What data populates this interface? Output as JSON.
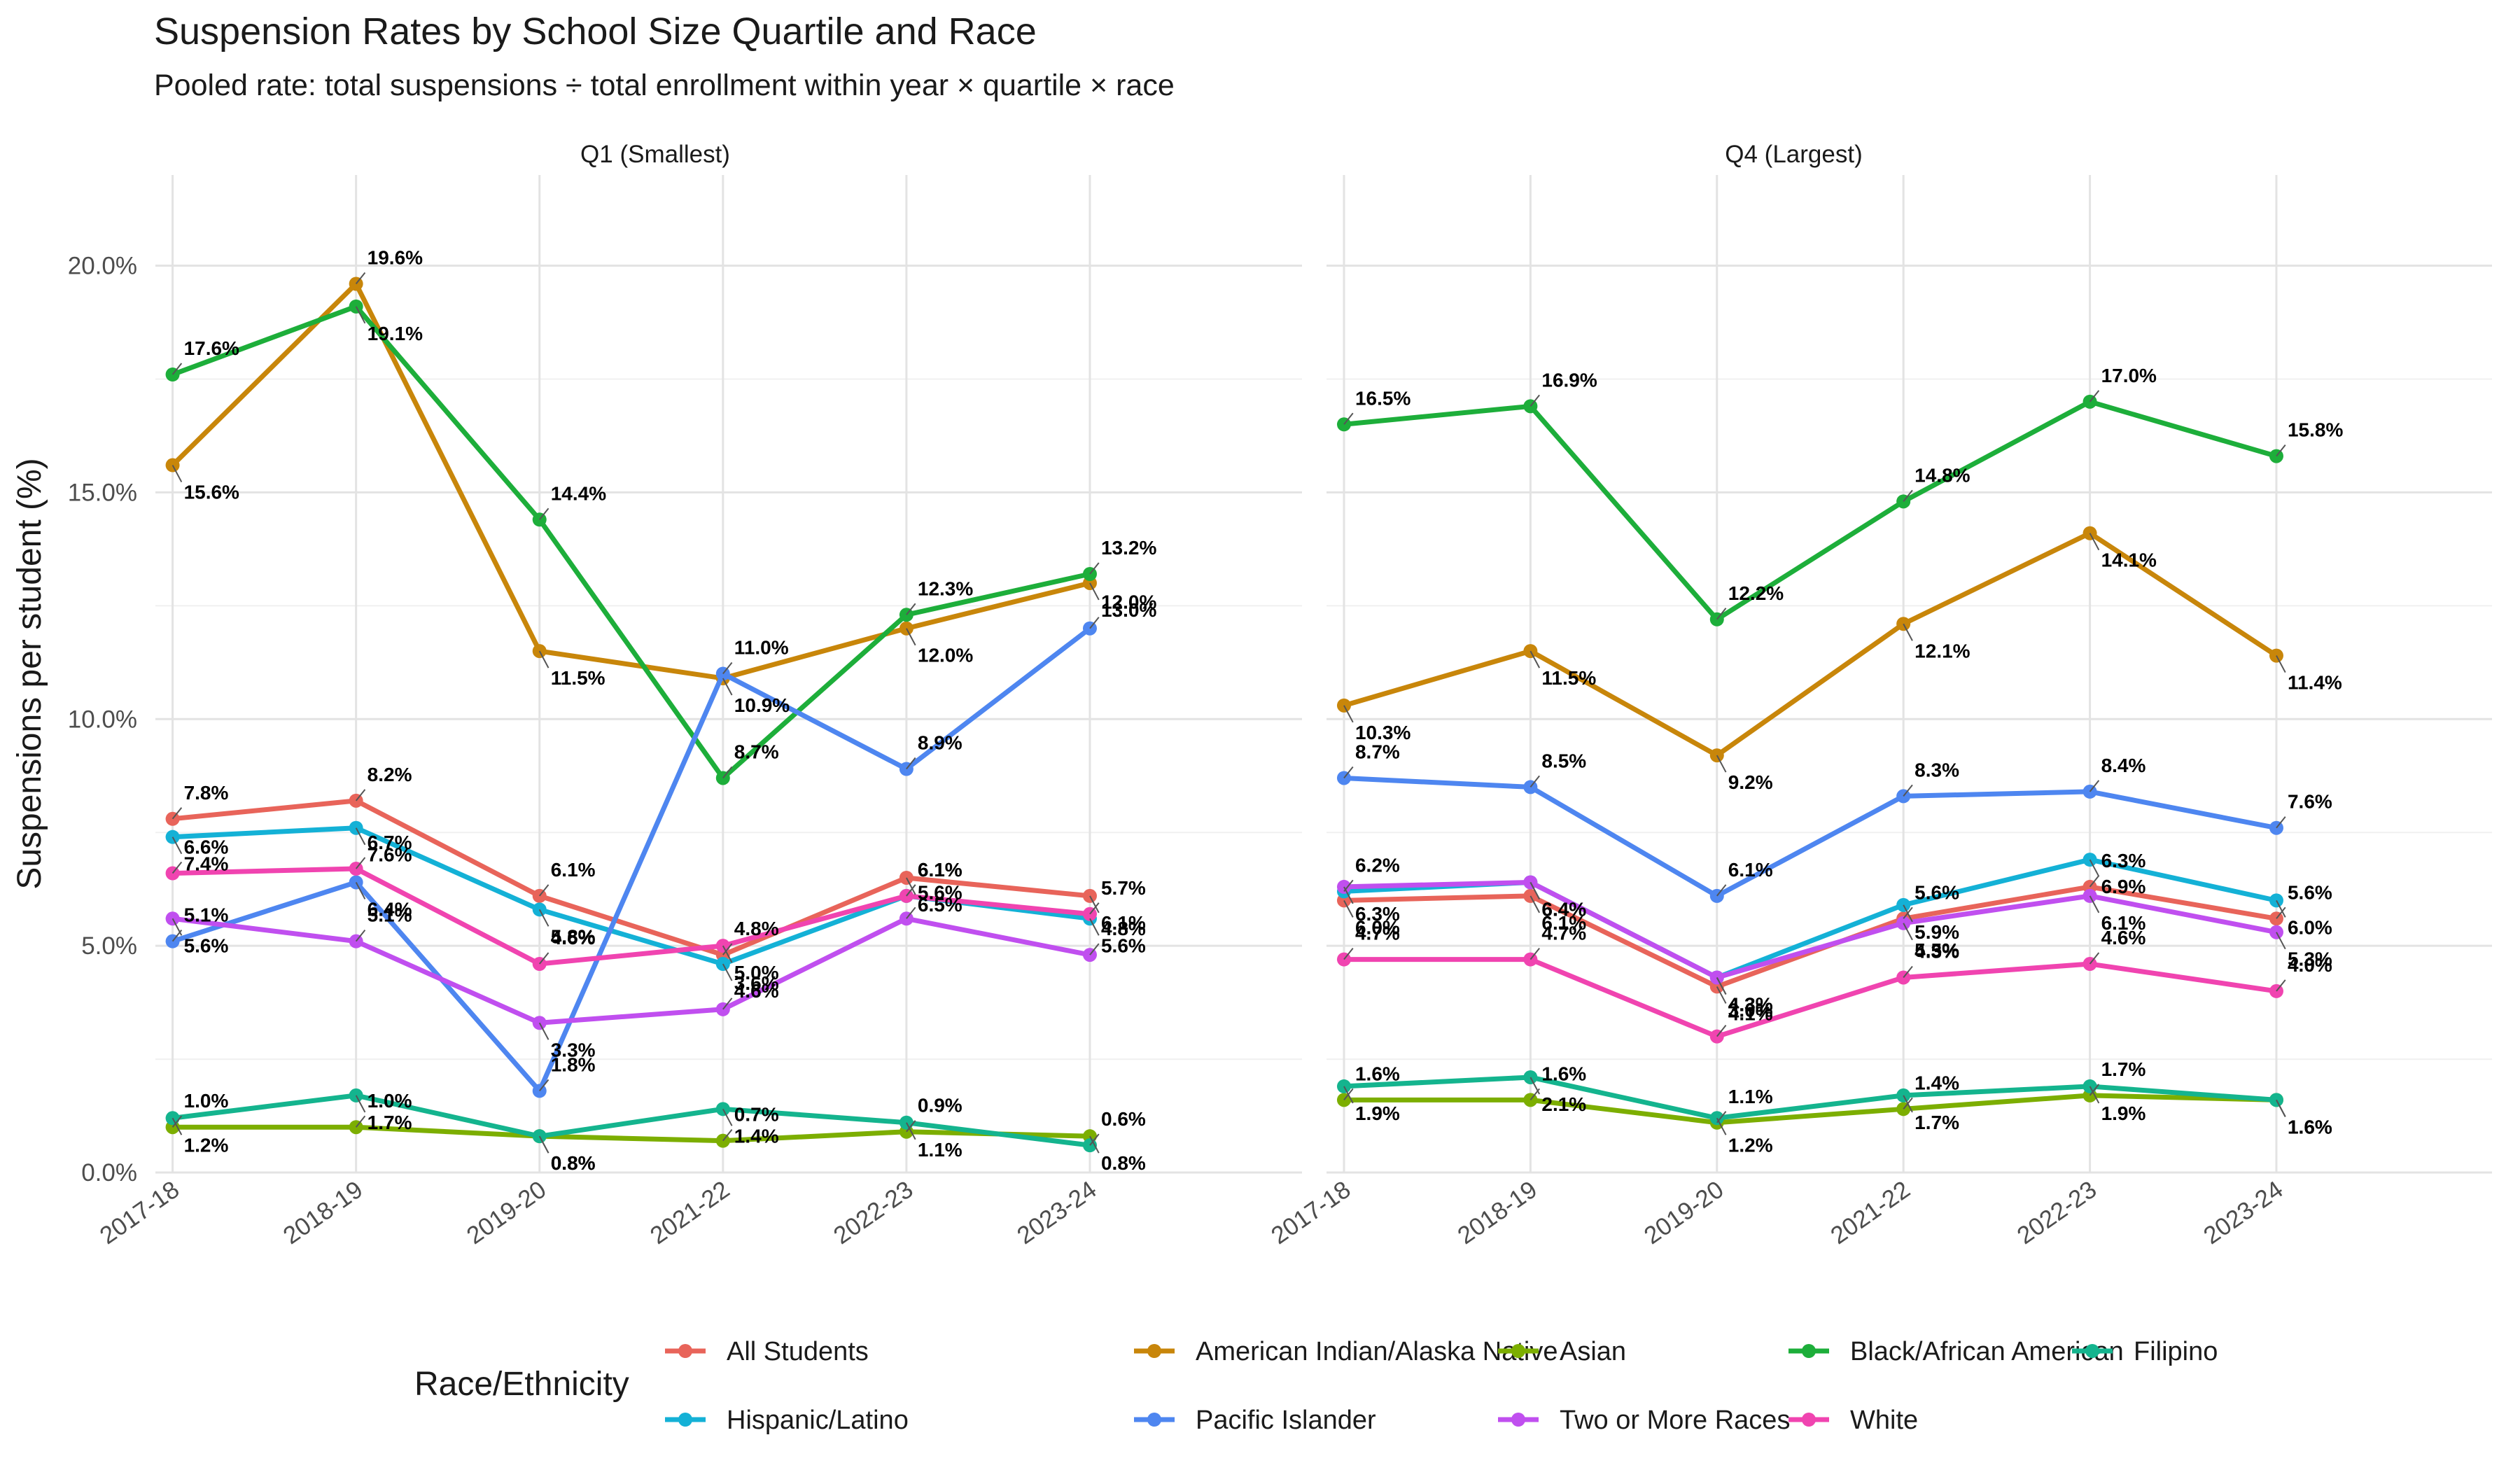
{
  "chart_data": {
    "type": "line",
    "title": "Suspension Rates by School Size Quartile and Race",
    "subtitle": "Pooled rate: total suspensions ÷ total enrollment within year × quartile × race",
    "ylabel": "Suspensions per student (%)",
    "xlabel": "",
    "ylim": [
      0,
      22
    ],
    "yticks": [
      0,
      5,
      10,
      15,
      20
    ],
    "ytick_labels": [
      "0.0%",
      "5.0%",
      "10.0%",
      "15.0%",
      "20.0%"
    ],
    "x": [
      "2017-18",
      "2018-19",
      "2019-20",
      "2021-22",
      "2022-23",
      "2023-24"
    ],
    "grid": true,
    "legend_title": "Race/Ethnicity",
    "legend_position": "bottom",
    "series_meta": [
      {
        "name": "All Students",
        "color": "#E8645A"
      },
      {
        "name": "American Indian/Alaska Native",
        "color": "#C8860A"
      },
      {
        "name": "Asian",
        "color": "#7CAE00"
      },
      {
        "name": "Black/African American",
        "color": "#1DAE3A"
      },
      {
        "name": "Filipino",
        "color": "#14B48E"
      },
      {
        "name": "Hispanic/Latino",
        "color": "#14B1D6"
      },
      {
        "name": "Pacific Islander",
        "color": "#4E86F0"
      },
      {
        "name": "Two or More Races",
        "color": "#C04FEF"
      },
      {
        "name": "White",
        "color": "#F044B0"
      }
    ],
    "panels": [
      {
        "label": "Q1 (Smallest)",
        "series": [
          {
            "name": "All Students",
            "values": [
              7.8,
              8.2,
              6.1,
              4.8,
              6.5,
              6.1
            ]
          },
          {
            "name": "American Indian/Alaska Native",
            "values": [
              15.6,
              19.6,
              11.5,
              10.9,
              12.0,
              13.0
            ]
          },
          {
            "name": "Asian",
            "values": [
              1.0,
              1.0,
              0.8,
              0.7,
              0.9,
              0.8
            ]
          },
          {
            "name": "Black/African American",
            "values": [
              17.6,
              19.1,
              14.4,
              8.7,
              12.3,
              13.2
            ]
          },
          {
            "name": "Filipino",
            "values": [
              1.2,
              1.7,
              0.8,
              1.4,
              1.1,
              0.6
            ]
          },
          {
            "name": "Hispanic/Latino",
            "values": [
              7.4,
              7.6,
              5.8,
              4.6,
              6.1,
              5.6
            ]
          },
          {
            "name": "Pacific Islander",
            "values": [
              5.1,
              6.4,
              1.8,
              11.0,
              8.9,
              12.0
            ]
          },
          {
            "name": "Two or More Races",
            "values": [
              5.6,
              5.1,
              3.3,
              3.6,
              5.6,
              4.8
            ]
          },
          {
            "name": "White",
            "values": [
              6.6,
              6.7,
              4.6,
              5.0,
              6.1,
              5.7
            ]
          }
        ]
      },
      {
        "label": "Q4 (Largest)",
        "series": [
          {
            "name": "All Students",
            "values": [
              6.0,
              6.1,
              4.1,
              5.6,
              6.3,
              5.6
            ]
          },
          {
            "name": "American Indian/Alaska Native",
            "values": [
              10.3,
              11.5,
              9.2,
              12.1,
              14.1,
              11.4
            ]
          },
          {
            "name": "Asian",
            "values": [
              1.6,
              1.6,
              1.1,
              1.4,
              1.7,
              1.6
            ]
          },
          {
            "name": "Black/African American",
            "values": [
              16.5,
              16.9,
              12.2,
              14.8,
              17.0,
              15.8
            ]
          },
          {
            "name": "Filipino",
            "values": [
              1.9,
              2.1,
              1.2,
              1.7,
              1.9,
              1.6
            ]
          },
          {
            "name": "Hispanic/Latino",
            "values": [
              6.2,
              6.4,
              4.3,
              5.9,
              6.9,
              6.0
            ]
          },
          {
            "name": "Pacific Islander",
            "values": [
              8.7,
              8.5,
              6.1,
              8.3,
              8.4,
              7.6
            ]
          },
          {
            "name": "Two or More Races",
            "values": [
              6.3,
              6.4,
              4.3,
              5.5,
              6.1,
              5.3
            ]
          },
          {
            "name": "White",
            "values": [
              4.7,
              4.7,
              3.0,
              4.3,
              4.6,
              4.0
            ]
          }
        ]
      }
    ]
  }
}
